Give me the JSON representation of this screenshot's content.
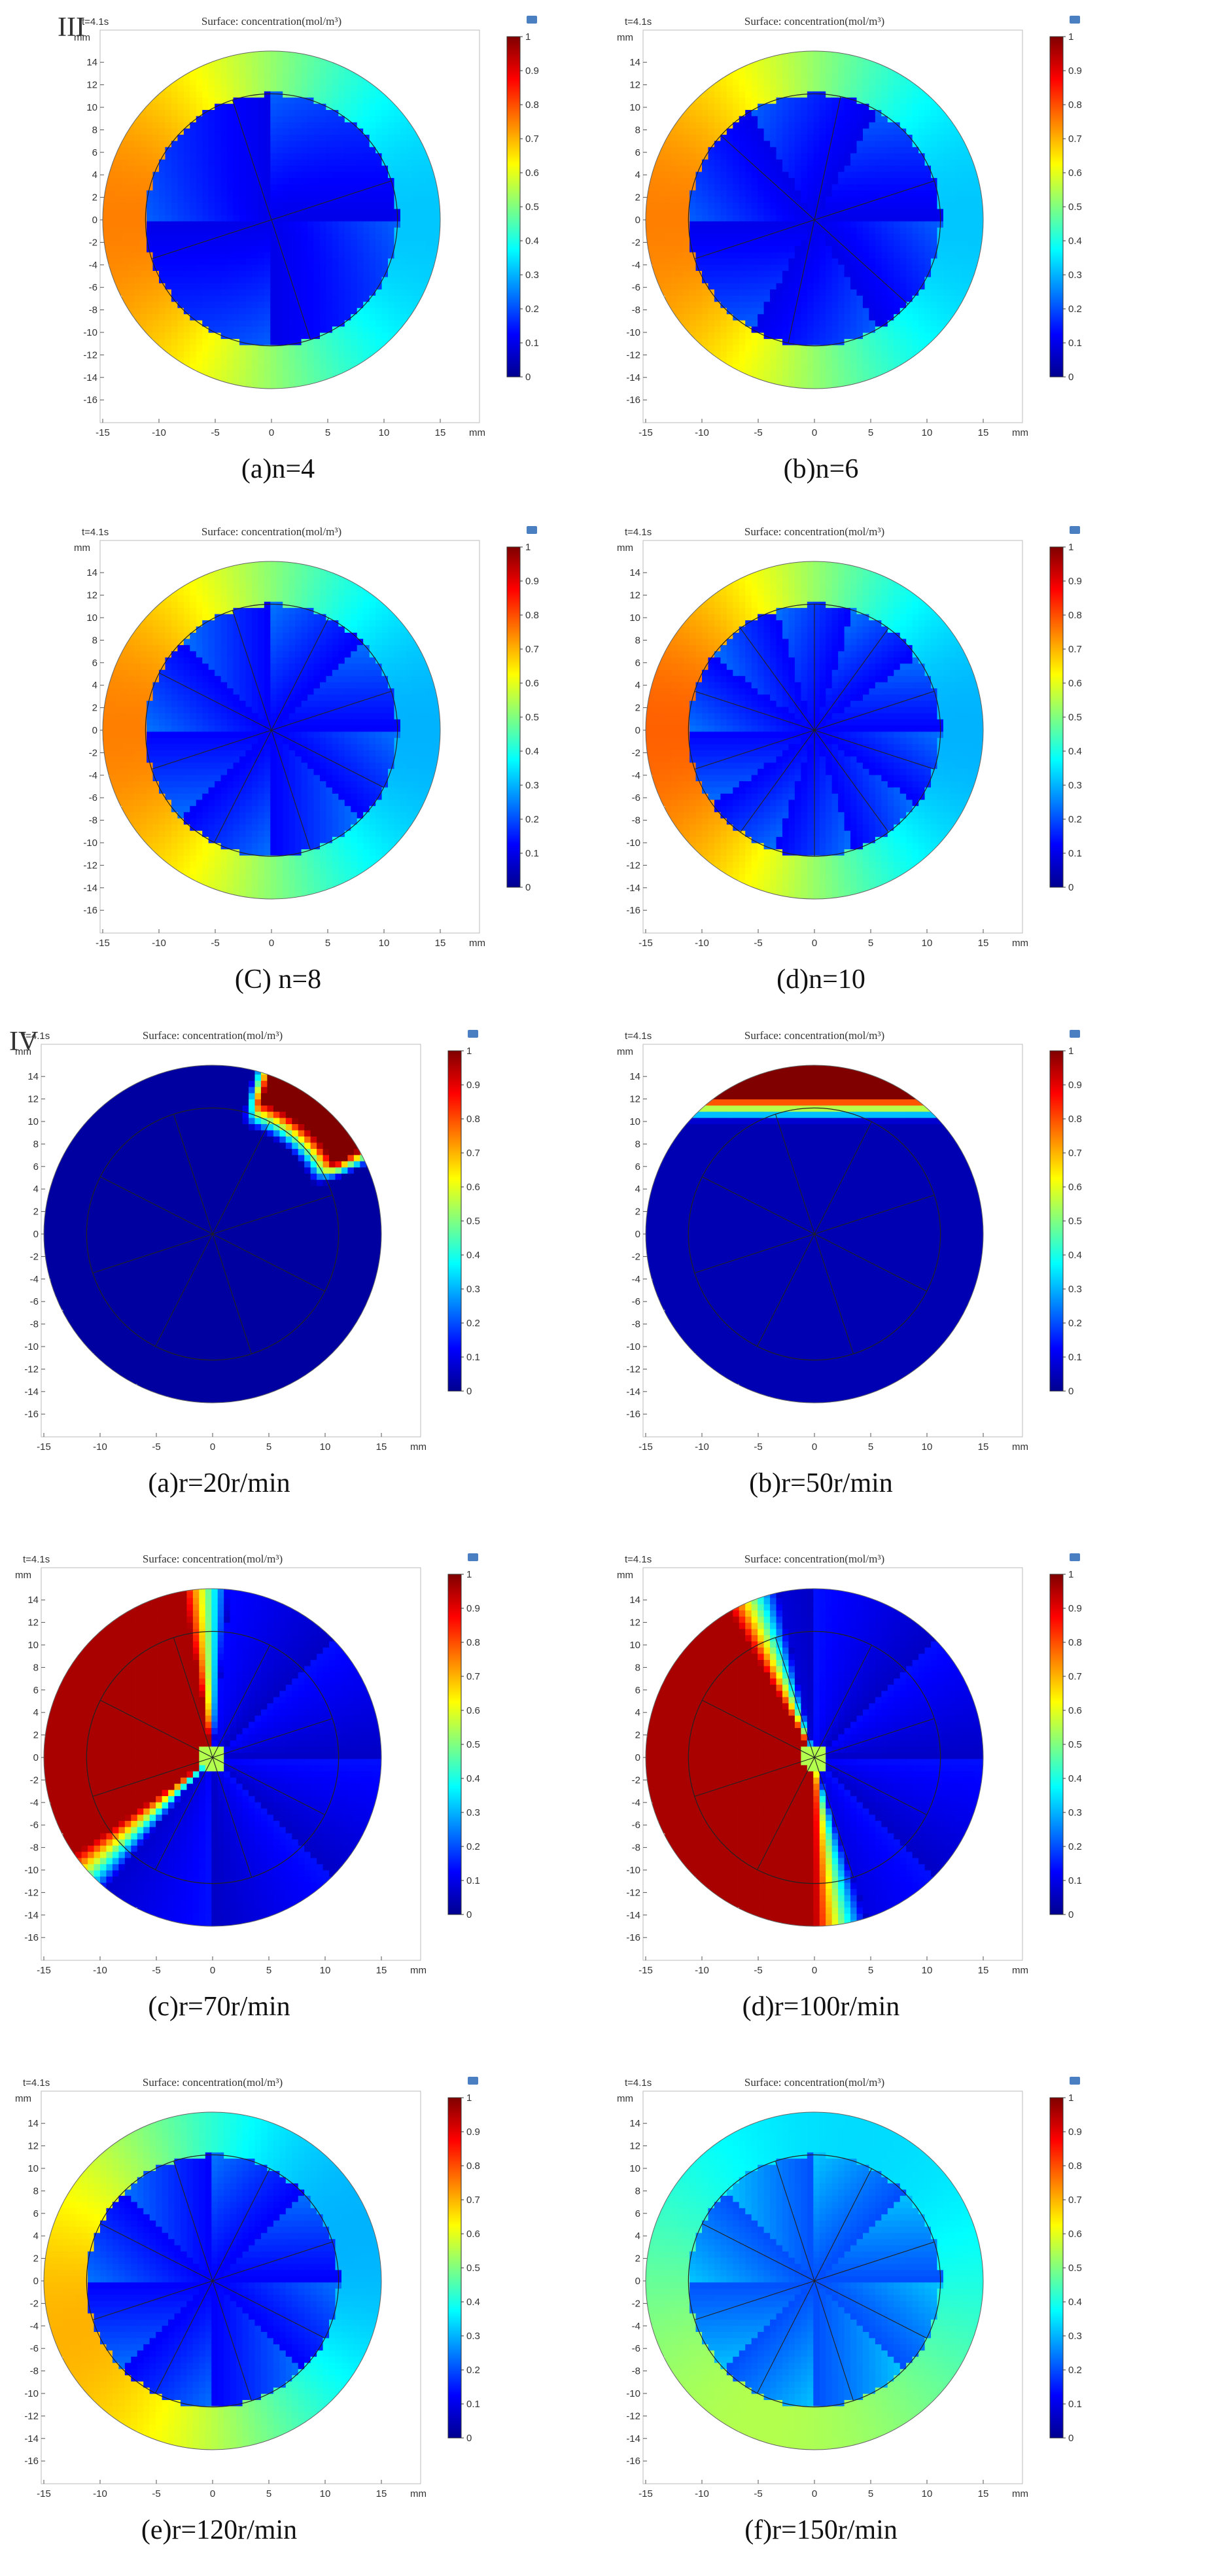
{
  "sections": [
    {
      "label": "III",
      "panel_indices": [
        0,
        1,
        2,
        3
      ]
    },
    {
      "label": "IV",
      "panel_indices": [
        4,
        5,
        6,
        7,
        8,
        9
      ]
    }
  ],
  "colormap": [
    "#00008f",
    "#0000ff",
    "#0080ff",
    "#00ffff",
    "#80ff80",
    "#ffff00",
    "#ff8000",
    "#ff0000",
    "#800000"
  ],
  "chart_data": [
    {
      "type": "heatmap",
      "time_label": "t=4.1s",
      "title": "Surface: concentration(mol/m³)",
      "unit_label": "mm",
      "caption": "(a)n=4",
      "x_ticks": [
        -15,
        -10,
        -5,
        0,
        5,
        10,
        15
      ],
      "y_ticks": [
        14,
        12,
        10,
        8,
        6,
        4,
        2,
        0,
        -2,
        -4,
        -6,
        -8,
        -10,
        -12,
        -14,
        -16
      ],
      "colorbar_ticks": [
        1,
        0.9,
        0.8,
        0.7,
        0.6,
        0.5,
        0.4,
        0.3,
        0.2,
        0.1,
        0
      ],
      "clim": [
        0,
        1
      ],
      "blades": 4,
      "field": {
        "pattern": "annulus",
        "annulus_low": 0.32,
        "annulus_high": 0.75,
        "inner": 0.1,
        "high_angle_deg": 180
      }
    },
    {
      "type": "heatmap",
      "time_label": "t=4.1s",
      "title": "Surface: concentration(mol/m³)",
      "unit_label": "mm",
      "caption": "(b)n=6",
      "x_ticks": [
        -15,
        -10,
        -5,
        0,
        5,
        10,
        15
      ],
      "y_ticks": [
        14,
        12,
        10,
        8,
        6,
        4,
        2,
        0,
        -2,
        -4,
        -6,
        -8,
        -10,
        -12,
        -14,
        -16
      ],
      "colorbar_ticks": [
        1,
        0.9,
        0.8,
        0.7,
        0.6,
        0.5,
        0.4,
        0.3,
        0.2,
        0.1,
        0
      ],
      "clim": [
        0,
        1
      ],
      "blades": 6,
      "field": {
        "pattern": "annulus",
        "annulus_low": 0.32,
        "annulus_high": 0.75,
        "inner": 0.1,
        "high_angle_deg": 180
      }
    },
    {
      "type": "heatmap",
      "time_label": "t=4.1s",
      "title": "Surface: concentration(mol/m³)",
      "unit_label": "mm",
      "caption": "(C)  n=8",
      "x_ticks": [
        -15,
        -10,
        -5,
        0,
        5,
        10,
        15
      ],
      "y_ticks": [
        14,
        12,
        10,
        8,
        6,
        4,
        2,
        0,
        -2,
        -4,
        -6,
        -8,
        -10,
        -12,
        -14,
        -16
      ],
      "colorbar_ticks": [
        1,
        0.9,
        0.8,
        0.7,
        0.6,
        0.5,
        0.4,
        0.3,
        0.2,
        0.1,
        0
      ],
      "clim": [
        0,
        1
      ],
      "blades": 8,
      "field": {
        "pattern": "annulus",
        "annulus_low": 0.3,
        "annulus_high": 0.75,
        "inner": 0.12,
        "high_angle_deg": 180
      }
    },
    {
      "type": "heatmap",
      "time_label": "t=4.1s",
      "title": "Surface: concentration(mol/m³)",
      "unit_label": "mm",
      "caption": "(d)n=10",
      "x_ticks": [
        -15,
        -10,
        -5,
        0,
        5,
        10,
        15
      ],
      "y_ticks": [
        14,
        12,
        10,
        8,
        6,
        4,
        2,
        0,
        -2,
        -4,
        -6,
        -8,
        -10,
        -12,
        -14,
        -16
      ],
      "colorbar_ticks": [
        1,
        0.9,
        0.8,
        0.7,
        0.6,
        0.5,
        0.4,
        0.3,
        0.2,
        0.1,
        0
      ],
      "clim": [
        0,
        1
      ],
      "blades": 10,
      "field": {
        "pattern": "annulus",
        "annulus_low": 0.3,
        "annulus_high": 0.78,
        "inner": 0.12,
        "high_angle_deg": 180
      }
    },
    {
      "type": "heatmap",
      "time_label": "t=4.1s",
      "title": "Surface: concentration(mol/m³)",
      "unit_label": "mm",
      "caption": "(a)r=20r/min",
      "x_ticks": [
        -15,
        -10,
        -5,
        0,
        5,
        10,
        15
      ],
      "y_ticks": [
        14,
        12,
        10,
        8,
        6,
        4,
        2,
        0,
        -2,
        -4,
        -6,
        -8,
        -10,
        -12,
        -14,
        -16
      ],
      "colorbar_ticks": [
        1,
        0.9,
        0.8,
        0.7,
        0.6,
        0.5,
        0.4,
        0.3,
        0.2,
        0.1,
        0
      ],
      "clim": [
        0,
        1
      ],
      "blades": 8,
      "field": {
        "pattern": "plume",
        "base": 0.02,
        "plume_center_deg": 50,
        "plume_spread_deg": 26
      }
    },
    {
      "type": "heatmap",
      "time_label": "t=4.1s",
      "title": "Surface: concentration(mol/m³)",
      "unit_label": "mm",
      "caption": "(b)r=50r/min",
      "x_ticks": [
        -15,
        -10,
        -5,
        0,
        5,
        10,
        15
      ],
      "y_ticks": [
        14,
        12,
        10,
        8,
        6,
        4,
        2,
        0,
        -2,
        -4,
        -6,
        -8,
        -10,
        -12,
        -14,
        -16
      ],
      "colorbar_ticks": [
        1,
        0.9,
        0.8,
        0.7,
        0.6,
        0.5,
        0.4,
        0.3,
        0.2,
        0.1,
        0
      ],
      "clim": [
        0,
        1
      ],
      "blades": 8,
      "field": {
        "pattern": "cap",
        "base": 0.04,
        "cap_top": 15,
        "cap_bottom": 10
      }
    },
    {
      "type": "heatmap",
      "time_label": "t=4.1s",
      "title": "Surface: concentration(mol/m³)",
      "unit_label": "mm",
      "caption": "(c)r=70r/min",
      "x_ticks": [
        -15,
        -10,
        -5,
        0,
        5,
        10,
        15
      ],
      "y_ticks": [
        14,
        12,
        10,
        8,
        6,
        4,
        2,
        0,
        -2,
        -4,
        -6,
        -8,
        -10,
        -12,
        -14,
        -16
      ],
      "colorbar_ticks": [
        1,
        0.9,
        0.8,
        0.7,
        0.6,
        0.5,
        0.4,
        0.3,
        0.2,
        0.1,
        0
      ],
      "clim": [
        0,
        1
      ],
      "blades": 8,
      "field": {
        "pattern": "sector",
        "base": 0.06,
        "high_start_deg": 100,
        "high_end_deg": 215,
        "edge_deg": 16
      }
    },
    {
      "type": "heatmap",
      "time_label": "t=4.1s",
      "title": "Surface: concentration(mol/m³)",
      "unit_label": "mm",
      "caption": "(d)r=100r/min",
      "x_ticks": [
        -15,
        -10,
        -5,
        0,
        5,
        10,
        15
      ],
      "y_ticks": [
        14,
        12,
        10,
        8,
        6,
        4,
        2,
        0,
        -2,
        -4,
        -6,
        -8,
        -10,
        -12,
        -14,
        -16
      ],
      "colorbar_ticks": [
        1,
        0.9,
        0.8,
        0.7,
        0.6,
        0.5,
        0.4,
        0.3,
        0.2,
        0.1,
        0
      ],
      "clim": [
        0,
        1
      ],
      "blades": 8,
      "field": {
        "pattern": "sector",
        "base": 0.06,
        "high_start_deg": 120,
        "high_end_deg": 270,
        "edge_deg": 18
      }
    },
    {
      "type": "heatmap",
      "time_label": "t=4.1s",
      "title": "Surface: concentration(mol/m³)",
      "unit_label": "mm",
      "caption": "(e)r=120r/min",
      "x_ticks": [
        -15,
        -10,
        -5,
        0,
        5,
        10,
        15
      ],
      "y_ticks": [
        14,
        12,
        10,
        8,
        6,
        4,
        2,
        0,
        -2,
        -4,
        -6,
        -8,
        -10,
        -12,
        -14,
        -16
      ],
      "colorbar_ticks": [
        1,
        0.9,
        0.8,
        0.7,
        0.6,
        0.5,
        0.4,
        0.3,
        0.2,
        0.1,
        0
      ],
      "clim": [
        0,
        1
      ],
      "blades": 8,
      "field": {
        "pattern": "annulus",
        "annulus_low": 0.3,
        "annulus_high": 0.7,
        "inner": 0.12,
        "high_angle_deg": 200
      }
    },
    {
      "type": "heatmap",
      "time_label": "t=4.1s",
      "title": "Surface: concentration(mol/m³)",
      "unit_label": "mm",
      "caption": "(f)r=150r/min",
      "x_ticks": [
        -15,
        -10,
        -5,
        0,
        5,
        10,
        15
      ],
      "y_ticks": [
        14,
        12,
        10,
        8,
        6,
        4,
        2,
        0,
        -2,
        -4,
        -6,
        -8,
        -10,
        -12,
        -14,
        -16
      ],
      "colorbar_ticks": [
        1,
        0.9,
        0.8,
        0.7,
        0.6,
        0.5,
        0.4,
        0.3,
        0.2,
        0.1,
        0
      ],
      "clim": [
        0,
        1
      ],
      "blades": 8,
      "field": {
        "pattern": "annulus",
        "annulus_low": 0.34,
        "annulus_high": 0.55,
        "inner": 0.2,
        "high_angle_deg": 250
      }
    }
  ]
}
